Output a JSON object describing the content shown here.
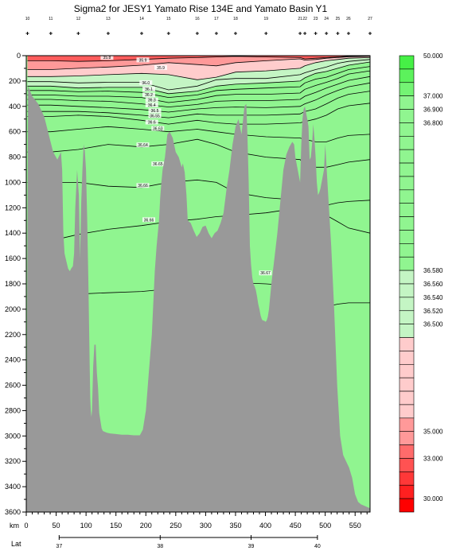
{
  "chart_data": {
    "type": "heatmap",
    "title": "Sigma2 for JESY1 Yamato Rise 134E and Yamato Basin Y1",
    "xlabel": "km",
    "ylabel": "",
    "xlim": [
      0,
      575
    ],
    "ylim": [
      3600,
      0
    ],
    "x_ticks": [
      "0",
      "50",
      "100",
      "150",
      "200",
      "250",
      "300",
      "350",
      "400",
      "450",
      "500",
      "550"
    ],
    "y_ticks": [
      "0",
      "200",
      "400",
      "600",
      "800",
      "1000",
      "1200",
      "1400",
      "1600",
      "1800",
      "2000",
      "2200",
      "2400",
      "2600",
      "2800",
      "3000",
      "3200",
      "3400",
      "3600"
    ],
    "lat_axis": {
      "label": "Lat",
      "ticks": [
        {
          "lat": "37",
          "km": 55
        },
        {
          "lat": "38",
          "km": 224
        },
        {
          "lat": "39",
          "km": 376
        },
        {
          "lat": "40",
          "km": 487
        }
      ]
    },
    "stations": {
      "km": [
        2,
        41,
        87,
        137,
        193,
        238,
        286,
        318,
        350,
        401,
        458,
        466,
        484,
        502,
        521,
        539,
        575
      ],
      "labels": [
        "10",
        "11",
        "12",
        "13",
        "14",
        "15",
        "16",
        "17",
        "18",
        "19",
        "21",
        "22",
        "23",
        "24",
        "25",
        "26",
        "27"
      ]
    },
    "colorbar": {
      "entries": [
        {
          "value": "50.000",
          "color": "#46f046"
        },
        {
          "value": "",
          "color": "#5cf25c"
        },
        {
          "value": "",
          "color": "#74f474"
        },
        {
          "value": "37.000",
          "color": "#90f590"
        },
        {
          "value": "36.900",
          "color": "#90f590"
        },
        {
          "value": "36.800",
          "color": "#90f590"
        },
        {
          "value": "",
          "color": "#90f590"
        },
        {
          "value": "",
          "color": "#90f590"
        },
        {
          "value": "",
          "color": "#90f590"
        },
        {
          "value": "",
          "color": "#90f590"
        },
        {
          "value": "",
          "color": "#90f590"
        },
        {
          "value": "",
          "color": "#90f590"
        },
        {
          "value": "",
          "color": "#90f590"
        },
        {
          "value": "",
          "color": "#90f590"
        },
        {
          "value": "",
          "color": "#90f590"
        },
        {
          "value": "",
          "color": "#90f590"
        },
        {
          "value": "36.580",
          "color": "#c4f5c4"
        },
        {
          "value": "36.560",
          "color": "#c4f5c4"
        },
        {
          "value": "36.540",
          "color": "#c4f5c4"
        },
        {
          "value": "36.520",
          "color": "#c4f5c4"
        },
        {
          "value": "36.500",
          "color": "#c4f5c4"
        },
        {
          "value": "",
          "color": "#ffcccc"
        },
        {
          "value": "",
          "color": "#ffcccc"
        },
        {
          "value": "",
          "color": "#ffcccc"
        },
        {
          "value": "",
          "color": "#ffcccc"
        },
        {
          "value": "",
          "color": "#ffcccc"
        },
        {
          "value": "",
          "color": "#ffcccc"
        },
        {
          "value": "",
          "color": "#ff9999"
        },
        {
          "value": "35.000",
          "color": "#ff9999"
        },
        {
          "value": "",
          "color": "#ff6b6b"
        },
        {
          "value": "33.000",
          "color": "#ff5252"
        },
        {
          "value": "",
          "color": "#ff3838"
        },
        {
          "value": "",
          "color": "#ff2020"
        },
        {
          "value": "30.000",
          "color": "#ff0000"
        }
      ]
    },
    "contour_labels": [
      {
        "text": "35.8",
        "km": 135,
        "depth": 20
      },
      {
        "text": "35.9",
        "km": 195,
        "depth": 40
      },
      {
        "text": "35.9",
        "km": 225,
        "depth": 100
      },
      {
        "text": "36.0",
        "km": 200,
        "depth": 220
      },
      {
        "text": "36.1",
        "km": 205,
        "depth": 270
      },
      {
        "text": "36.2",
        "km": 205,
        "depth": 315
      },
      {
        "text": "36.3",
        "km": 210,
        "depth": 355
      },
      {
        "text": "36.4",
        "km": 210,
        "depth": 395
      },
      {
        "text": "36.5",
        "km": 215,
        "depth": 440
      },
      {
        "text": "36.55",
        "km": 215,
        "depth": 480
      },
      {
        "text": "36.6",
        "km": 210,
        "depth": 530
      },
      {
        "text": "36.63",
        "km": 220,
        "depth": 580
      },
      {
        "text": "36.64",
        "km": 195,
        "depth": 710
      },
      {
        "text": "36.65",
        "km": 220,
        "depth": 860
      },
      {
        "text": "36.66",
        "km": 195,
        "depth": 1030
      },
      {
        "text": "36.66",
        "km": 205,
        "depth": 1300
      },
      {
        "text": "36.67",
        "km": 400,
        "depth": 1720
      }
    ],
    "contours": [
      {
        "depths": [
          40,
          40,
          45,
          40,
          30,
          20,
          15,
          10,
          5,
          10,
          15,
          25,
          20,
          15,
          10,
          5,
          2
        ]
      },
      {
        "depths": [
          110,
          110,
          100,
          90,
          75,
          55,
          70,
          80,
          55,
          40,
          25,
          35,
          30,
          20,
          15,
          8,
          5
        ]
      },
      {
        "depths": [
          165,
          165,
          160,
          150,
          140,
          150,
          190,
          170,
          130,
          120,
          100,
          80,
          55,
          40,
          30,
          20,
          15
        ]
      },
      {
        "depths": [
          205,
          205,
          215,
          210,
          210,
          270,
          240,
          190,
          180,
          180,
          150,
          135,
          110,
          90,
          60,
          45,
          30
        ]
      },
      {
        "depths": [
          240,
          240,
          255,
          250,
          250,
          300,
          280,
          240,
          225,
          215,
          200,
          175,
          140,
          125,
          100,
          75,
          50
        ]
      },
      {
        "depths": [
          275,
          275,
          285,
          280,
          290,
          330,
          310,
          275,
          265,
          255,
          245,
          215,
          185,
          170,
          140,
          110,
          85
        ]
      },
      {
        "depths": [
          310,
          310,
          320,
          320,
          330,
          370,
          345,
          315,
          305,
          305,
          295,
          265,
          235,
          210,
          180,
          145,
          120
        ]
      },
      {
        "depths": [
          345,
          345,
          355,
          360,
          380,
          405,
          385,
          360,
          355,
          355,
          345,
          320,
          290,
          255,
          225,
          195,
          165
        ]
      },
      {
        "depths": [
          390,
          390,
          400,
          410,
          425,
          445,
          420,
          410,
          405,
          410,
          400,
          380,
          350,
          310,
          275,
          245,
          215
        ]
      },
      {
        "depths": [
          440,
          440,
          440,
          450,
          470,
          490,
          460,
          470,
          470,
          470,
          460,
          440,
          420,
          380,
          335,
          305,
          280
        ]
      },
      {
        "depths": [
          480,
          480,
          470,
          480,
          510,
          540,
          510,
          530,
          540,
          540,
          530,
          520,
          500,
          470,
          420,
          395,
          375
        ]
      },
      {
        "depths": [
          600,
          600,
          580,
          560,
          580,
          600,
          580,
          600,
          620,
          640,
          650,
          660,
          680,
          680,
          650,
          630,
          620
        ]
      },
      {
        "depths": [
          760,
          760,
          740,
          700,
          720,
          700,
          660,
          700,
          760,
          800,
          820,
          860,
          880,
          880,
          860,
          840,
          820
        ]
      },
      {
        "depths": [
          1000,
          1000,
          1000,
          1030,
          1040,
          1000,
          980,
          1000,
          1080,
          1120,
          1140,
          1160,
          1200,
          1180,
          1160,
          1150,
          1140
        ]
      },
      {
        "depths": [
          1460,
          1460,
          1410,
          1370,
          1340,
          1310,
          1290,
          1270,
          1260,
          1240,
          1200,
          1200,
          1220,
          1260,
          1310,
          1360,
          1400
        ]
      },
      {
        "depths": [
          1880,
          1880,
          1880,
          1870,
          1860,
          1840,
          1820,
          1800,
          1790,
          1800,
          1820,
          1880,
          1940,
          1980,
          1960,
          1950,
          1950
        ]
      }
    ],
    "bathymetry": {
      "km": [
        0,
        3,
        10,
        20,
        30,
        45,
        52,
        58,
        60,
        62,
        64,
        67,
        70,
        73,
        75,
        78,
        80,
        82,
        85,
        88,
        90,
        92,
        94,
        96,
        98,
        100,
        102,
        104,
        106,
        107,
        108,
        109,
        110,
        112,
        114,
        116,
        118,
        120,
        122,
        124,
        126,
        128,
        130,
        135,
        140,
        150,
        160,
        170,
        180,
        190,
        195,
        200,
        205,
        210,
        215,
        218,
        220,
        222,
        224,
        226,
        228,
        232,
        236,
        240,
        245,
        250,
        255,
        260,
        262,
        265,
        268,
        270,
        275,
        280,
        285,
        290,
        295,
        300,
        305,
        310,
        315,
        320,
        325,
        330,
        335,
        340,
        345,
        350,
        355,
        360,
        365,
        368,
        370,
        372,
        374,
        376,
        378,
        380,
        382,
        384,
        386,
        388,
        390,
        392,
        394,
        396,
        398,
        400,
        402,
        404,
        406,
        408,
        410,
        415,
        420,
        425,
        430,
        435,
        440,
        445,
        448,
        450,
        452,
        454,
        456,
        458,
        460,
        462,
        464,
        466,
        468,
        470,
        472,
        474,
        476,
        478,
        480,
        482,
        484,
        486,
        488,
        490,
        492,
        494,
        496,
        498,
        500,
        505,
        510,
        515,
        520,
        525,
        530,
        535,
        540,
        545,
        550,
        555,
        560,
        565,
        570,
        575
      ],
      "depth": [
        3600,
        240,
        320,
        380,
        480,
        760,
        820,
        760,
        900,
        1400,
        1560,
        1620,
        1680,
        1700,
        1680,
        1660,
        1560,
        1200,
        900,
        1100,
        1600,
        1150,
        900,
        700,
        750,
        900,
        1300,
        1800,
        2400,
        2700,
        2800,
        2850,
        2800,
        2450,
        2280,
        2280,
        2500,
        2620,
        2820,
        2880,
        2940,
        2960,
        2965,
        2975,
        2980,
        2985,
        2990,
        2990,
        2995,
        2995,
        2950,
        2800,
        2500,
        2200,
        1700,
        1500,
        1400,
        1300,
        1120,
        1000,
        900,
        800,
        620,
        600,
        650,
        760,
        800,
        880,
        850,
        920,
        1100,
        1300,
        1320,
        1380,
        1430,
        1400,
        1350,
        1340,
        1400,
        1440,
        1400,
        1380,
        1320,
        1240,
        1050,
        900,
        700,
        560,
        500,
        620,
        400,
        380,
        650,
        1000,
        1500,
        1650,
        1750,
        1800,
        1820,
        1850,
        1900,
        1960,
        2000,
        2050,
        2080,
        2090,
        2090,
        2100,
        2090,
        2060,
        2000,
        1900,
        1800,
        1600,
        1400,
        1150,
        900,
        780,
        720,
        680,
        700,
        800,
        850,
        900,
        950,
        1000,
        700,
        500,
        420,
        400,
        450,
        500,
        560,
        820,
        800,
        700,
        540,
        650,
        800,
        1000,
        1100,
        1080,
        1050,
        1000,
        950,
        900,
        700,
        1100,
        1500,
        2000,
        2600,
        3000,
        3150,
        3200,
        3250,
        3330,
        3460,
        3520,
        3540,
        3550,
        3560,
        3570
      ]
    }
  }
}
